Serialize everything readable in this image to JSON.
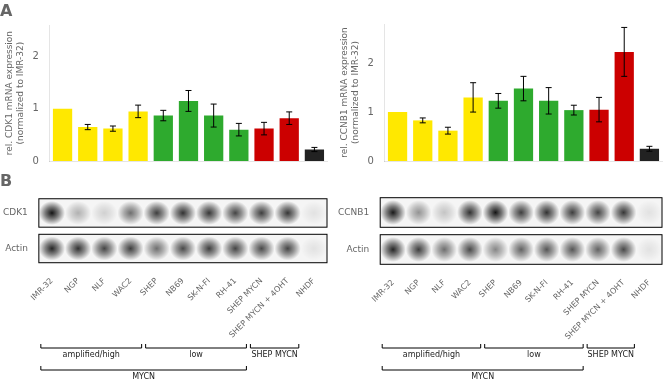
{
  "chart_data": [
    {
      "type": "bar",
      "title": "A",
      "categories": [
        null,
        null,
        null,
        null,
        null,
        null,
        null,
        null,
        null,
        null,
        null
      ],
      "values": [
        1.0,
        0.65,
        0.62,
        0.95,
        0.87,
        1.15,
        0.87,
        0.6,
        0.62,
        0.82,
        0.22
      ],
      "errors": [
        0.0,
        0.05,
        0.05,
        0.12,
        0.1,
        0.2,
        0.22,
        0.12,
        0.12,
        0.12,
        0.04
      ],
      "colors": [
        "#FFE800",
        "#FFE800",
        "#FFE800",
        "#FFE800",
        "#2EAA2E",
        "#2EAA2E",
        "#2EAA2E",
        "#2EAA2E",
        "#CC0000",
        "#CC0000",
        "#222222"
      ],
      "y_label": "rel. CDK1 mRNA expression\n(normalized to IMR-32)",
      "ylim": [
        0,
        2.6
      ],
      "yticks": [
        0,
        1,
        2
      ],
      "grid": false,
      "tick_labels": "y"
    },
    {
      "type": "bar",
      "categories": [
        null,
        null,
        null,
        null,
        null,
        null,
        null,
        null,
        null,
        null,
        null
      ],
      "values": [
        1.0,
        0.83,
        0.62,
        1.3,
        1.23,
        1.48,
        1.23,
        1.04,
        1.05,
        2.23,
        0.25
      ],
      "errors": [
        0.0,
        0.05,
        0.07,
        0.3,
        0.15,
        0.25,
        0.27,
        0.1,
        0.25,
        0.5,
        0.05
      ],
      "colors": [
        "#FFE800",
        "#FFE800",
        "#FFE800",
        "#FFE800",
        "#2EAA2E",
        "#2EAA2E",
        "#2EAA2E",
        "#2EAA2E",
        "#CC0000",
        "#CC0000",
        "#222222"
      ],
      "y_label": "rel. CCNB1 mRNA expression\n(normalized to IMR-32)",
      "ylim": [
        0,
        2.8
      ],
      "yticks": [
        0,
        1,
        2
      ],
      "grid": false,
      "tick_labels": "y"
    },
    {
      "type": "blot",
      "title": "B",
      "categories": [
        "IMR-32",
        "NGP",
        "NLF",
        "WAC2",
        "SHEP",
        "NB69",
        "SK-N-FI",
        "RH-41",
        "SHEP MYCN",
        "SHEP MYCN + 4OHT",
        "NHDF"
      ],
      "series": [
        {
          "name": "CDK1",
          "values": [
            0.92,
            0.28,
            0.15,
            0.55,
            0.75,
            0.8,
            0.78,
            0.72,
            0.75,
            0.78,
            0.08
          ]
        },
        {
          "name": "Actin",
          "values": [
            0.85,
            0.8,
            0.72,
            0.75,
            0.55,
            0.7,
            0.75,
            0.72,
            0.7,
            0.72,
            0.08
          ]
        }
      ],
      "annotations": [
        {
          "text": "amplified/high",
          "categories": [
            "IMR-32",
            "WAC2"
          ]
        },
        {
          "text": "low",
          "categories": [
            "SHEP",
            "RH-41"
          ]
        },
        {
          "text": "SHEP MYCN",
          "categories": [
            "SHEP MYCN",
            "SHEP MYCN + 4OHT"
          ]
        },
        {
          "text": "MYCN",
          "categories": [
            "IMR-32",
            "RH-41"
          ]
        }
      ],
      "grid": false
    },
    {
      "type": "blot",
      "categories": [
        "IMR-32",
        "NGP",
        "NLF",
        "WAC2",
        "SHEP",
        "NB69",
        "SK-N-FI",
        "RH-41",
        "SHEP MYCN",
        "SHEP MYCN + 4OHT",
        "NHDF"
      ],
      "series": [
        {
          "name": "CCNB1",
          "values": [
            0.9,
            0.4,
            0.2,
            0.8,
            0.92,
            0.75,
            0.8,
            0.75,
            0.72,
            0.78,
            0.08
          ]
        },
        {
          "name": "Actin",
          "values": [
            0.85,
            0.75,
            0.55,
            0.7,
            0.45,
            0.6,
            0.65,
            0.65,
            0.6,
            0.7,
            0.08
          ]
        }
      ],
      "annotations": [
        {
          "text": "amplified/high",
          "categories": [
            "IMR-32",
            "WAC2"
          ]
        },
        {
          "text": "low",
          "categories": [
            "SHEP",
            "RH-41"
          ]
        },
        {
          "text": "SHEP MYCN",
          "categories": [
            "SHEP MYCN",
            "SHEP MYCN + 4OHT"
          ]
        },
        {
          "text": "MYCN",
          "categories": [
            "IMR-32",
            "RH-41"
          ]
        }
      ],
      "grid": false
    }
  ]
}
